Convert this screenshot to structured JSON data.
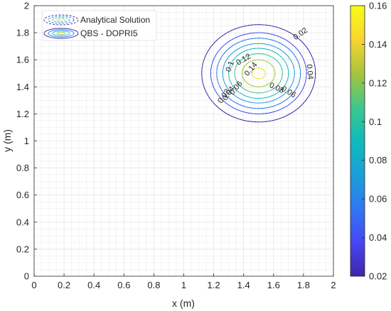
{
  "chart_data": {
    "type": "contour",
    "xlabel": "x (m)",
    "ylabel": "y (m)",
    "xlim": [
      0,
      2
    ],
    "ylim": [
      0,
      2
    ],
    "xticks": [
      "0",
      "0.2",
      "0.4",
      "0.6",
      "0.8",
      "1",
      "1.2",
      "1.4",
      "1.6",
      "1.8",
      "2"
    ],
    "yticks": [
      "0",
      "0.2",
      "0.4",
      "0.6",
      "0.8",
      "1",
      "1.2",
      "1.4",
      "1.6",
      "1.8",
      "2"
    ],
    "grid": true,
    "minor_grid_step": 0.05,
    "peak": {
      "x": 1.5,
      "y": 1.5
    },
    "contour_levels": [
      {
        "level": 0.02,
        "radius_x": 0.38,
        "radius_y": 0.36,
        "color": "#3d26a8"
      },
      {
        "level": 0.04,
        "radius_x": 0.32,
        "radius_y": 0.3,
        "color": "#3d48f0"
      },
      {
        "level": 0.06,
        "radius_x": 0.28,
        "radius_y": 0.26,
        "color": "#2278f0"
      },
      {
        "level": 0.08,
        "radius_x": 0.24,
        "radius_y": 0.22,
        "color": "#159cdf"
      },
      {
        "level": 0.1,
        "radius_x": 0.2,
        "radius_y": 0.185,
        "color": "#10b8c2"
      },
      {
        "level": 0.12,
        "radius_x": 0.16,
        "radius_y": 0.145,
        "color": "#3dc58c"
      },
      {
        "level": 0.14,
        "radius_x": 0.11,
        "radius_y": 0.1,
        "color": "#a5c33f"
      },
      {
        "level": 0.16,
        "radius_x": 0.045,
        "radius_y": 0.04,
        "color": "#f5e226"
      }
    ],
    "contour_labels": [
      {
        "text": "0.02",
        "x": 1.78,
        "y": 1.79,
        "angle": 35
      },
      {
        "text": "0.04",
        "x": 1.84,
        "y": 1.51,
        "angle": -85
      },
      {
        "text": "0.06",
        "x": 1.7,
        "y": 1.36,
        "angle": -30
      },
      {
        "text": "0.08",
        "x": 1.62,
        "y": 1.39,
        "angle": -25
      },
      {
        "text": "0.1",
        "x": 1.31,
        "y": 1.55,
        "angle": 70
      },
      {
        "text": "0.12",
        "x": 1.4,
        "y": 1.6,
        "angle": 30
      },
      {
        "text": "0.14",
        "x": 1.45,
        "y": 1.53,
        "angle": 50
      },
      {
        "text": "0.06",
        "x": 1.35,
        "y": 1.39,
        "angle": 50
      },
      {
        "text": "0.04",
        "x": 1.3,
        "y": 1.35,
        "angle": 55
      },
      {
        "text": "0.02",
        "x": 1.27,
        "y": 1.33,
        "angle": 55
      }
    ],
    "legend": {
      "placement": "top-left",
      "entries": [
        {
          "name": "Analytical Solution",
          "style": "dashed"
        },
        {
          "name": "QBS - DOPRI5",
          "style": "solid"
        }
      ]
    },
    "colorbar": {
      "min": 0.02,
      "max": 0.16,
      "ticks": [
        "0.02",
        "0.04",
        "0.06",
        "0.08",
        "0.1",
        "0.12",
        "0.14",
        "0.16"
      ],
      "colors": [
        "#3e26a8",
        "#4747f2",
        "#2f78f2",
        "#1b9fd8",
        "#0ebbbb",
        "#3fc78a",
        "#a8c33b",
        "#f9d52f",
        "#f9fb15"
      ]
    }
  }
}
